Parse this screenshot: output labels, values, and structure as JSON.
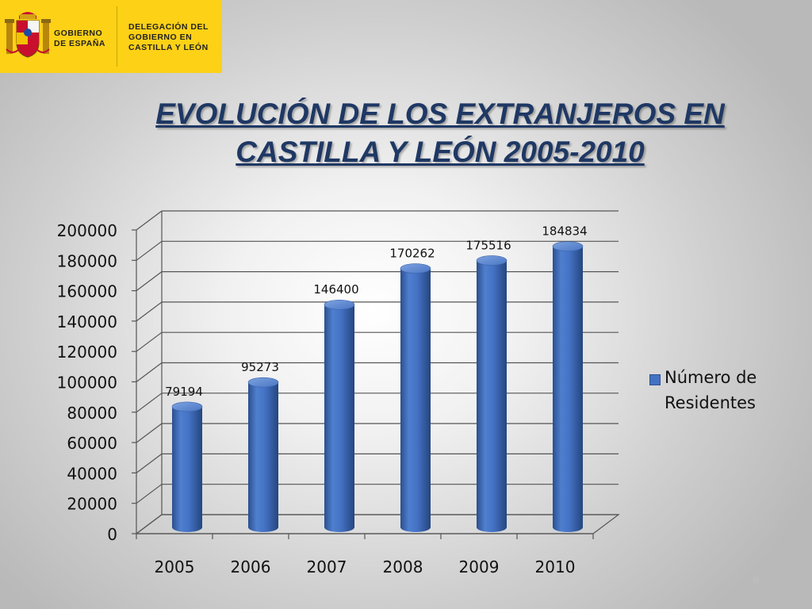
{
  "header": {
    "gobierno_text": "GOBIERNO\nDE ESPAÑA",
    "delegacion_text": "DELEGACIÓN DEL\nGOBIERNO EN\nCASTILLA Y LEÓN",
    "background_color": "#fcd116"
  },
  "slide": {
    "title": "EVOLUCIÓN DE LOS EXTRANJEROS EN CASTILLA Y LEÓN 2005-2010",
    "page_number": "6"
  },
  "colors": {
    "title": "#1f3864",
    "bar": "#4472c4"
  },
  "chart_data": {
    "type": "bar",
    "style": "3d-cylinder",
    "categories": [
      "2005",
      "2006",
      "2007",
      "2008",
      "2009",
      "2010"
    ],
    "series": [
      {
        "name": "Número de Residentes",
        "values": [
          79194,
          95273,
          146400,
          170262,
          175516,
          184834
        ]
      }
    ],
    "data_labels": [
      "79194",
      "95273",
      "146400",
      "170262",
      "175516",
      "184834"
    ],
    "ylim": [
      0,
      200000
    ],
    "yticks": [
      0,
      20000,
      40000,
      60000,
      80000,
      100000,
      120000,
      140000,
      160000,
      180000,
      200000
    ],
    "grid": true,
    "legend_position": "right",
    "xlabel": "",
    "ylabel": ""
  }
}
